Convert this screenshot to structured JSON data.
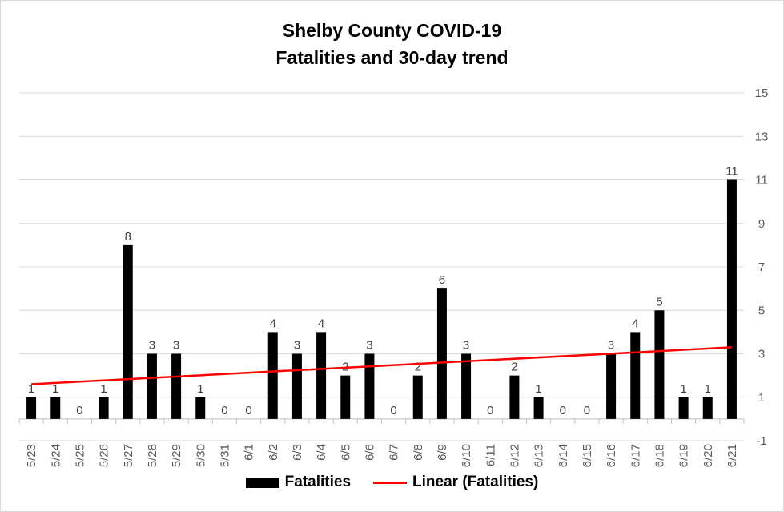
{
  "chart_data": {
    "type": "bar",
    "title": "Shelby County COVID-19",
    "subtitle": "Fatalities and 30-day trend",
    "categories": [
      "5/23",
      "5/24",
      "5/25",
      "5/26",
      "5/27",
      "5/28",
      "5/29",
      "5/30",
      "5/31",
      "6/1",
      "6/2",
      "6/3",
      "6/4",
      "6/5",
      "6/6",
      "6/7",
      "6/8",
      "6/9",
      "6/10",
      "6/11",
      "6/12",
      "6/13",
      "6/14",
      "6/15",
      "6/16",
      "6/17",
      "6/18",
      "6/19",
      "6/20",
      "6/21"
    ],
    "series": [
      {
        "name": "Fatalities",
        "color": "#000000",
        "values": [
          1,
          1,
          0,
          1,
          8,
          3,
          3,
          1,
          0,
          0,
          4,
          3,
          4,
          2,
          3,
          0,
          2,
          6,
          3,
          0,
          2,
          1,
          0,
          0,
          3,
          4,
          5,
          1,
          1,
          11
        ]
      }
    ],
    "trendline": {
      "name": "Linear (Fatalities)",
      "type": "linear",
      "color": "#ff0000",
      "start": 1.6,
      "end": 3.3
    },
    "y_axis": {
      "position": "right",
      "ylim": [
        -1,
        15
      ],
      "ticks": [
        "-1",
        "1",
        "3",
        "5",
        "7",
        "9",
        "11",
        "13",
        "15"
      ]
    },
    "grid": "horizontal",
    "legend_position": "bottom"
  },
  "legend": {
    "bars_label": "Fatalities",
    "line_label": "Linear (Fatalities)"
  }
}
